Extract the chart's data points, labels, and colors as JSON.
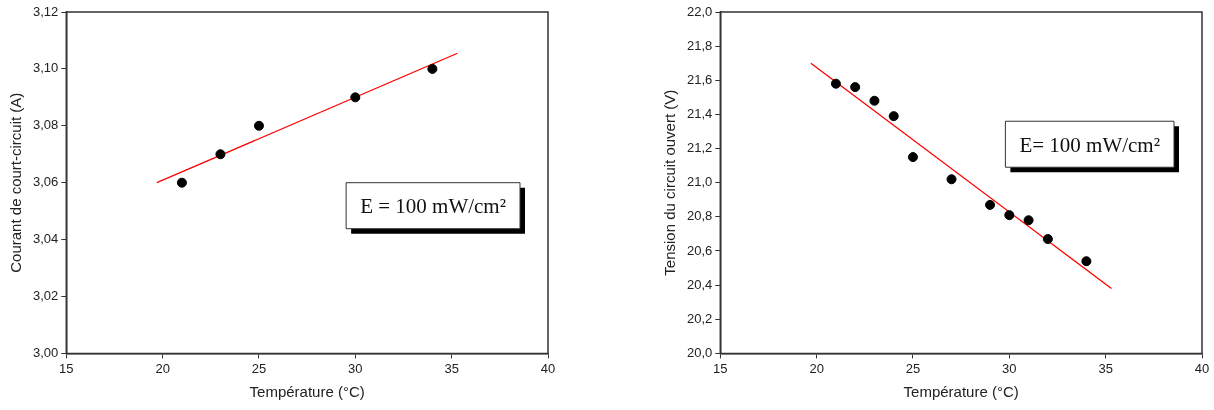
{
  "chart_data": [
    {
      "type": "scatter",
      "xlabel": "Température (°C)",
      "ylabel": "Courant de court-circuit (A)",
      "xlim": [
        15,
        40
      ],
      "xticks": [
        15,
        20,
        25,
        30,
        35,
        40
      ],
      "ylim": [
        3.0,
        3.12
      ],
      "yticks": [
        {
          "value": 3.0,
          "label": "3,00"
        },
        {
          "value": 3.02,
          "label": "3,02"
        },
        {
          "value": 3.04,
          "label": "3,04"
        },
        {
          "value": 3.06,
          "label": "3,06"
        },
        {
          "value": 3.08,
          "label": "3,08"
        },
        {
          "value": 3.1,
          "label": "3,10"
        },
        {
          "value": 3.12,
          "label": "3,12"
        }
      ],
      "grid": false,
      "legend": false,
      "annotations": [
        "E = 100 mW/cm²"
      ],
      "series": [
        {
          "color": "#000000",
          "marker": "circle",
          "x": [
            21,
            23,
            25,
            30,
            34
          ],
          "values": [
            3.06,
            3.07,
            3.08,
            3.09,
            3.1
          ]
        },
        {
          "type": "line",
          "color": "#ff0000",
          "marker": "none",
          "x": [
            19.7,
            35.3
          ],
          "values": [
            3.06,
            3.1055
          ]
        }
      ]
    },
    {
      "type": "scatter",
      "xlabel": "Température (°C)",
      "ylabel": "Tension du circuit ouvert (V)",
      "xlim": [
        15,
        40
      ],
      "xticks": [
        15,
        20,
        25,
        30,
        35,
        40
      ],
      "ylim": [
        20.0,
        22.0
      ],
      "yticks": [
        {
          "value": 20.0,
          "label": "20,0"
        },
        {
          "value": 20.2,
          "label": "20,2"
        },
        {
          "value": 20.4,
          "label": "20,4"
        },
        {
          "value": 20.6,
          "label": "20,6"
        },
        {
          "value": 20.8,
          "label": "20,8"
        },
        {
          "value": 21.0,
          "label": "21,0"
        },
        {
          "value": 21.2,
          "label": "21,2"
        },
        {
          "value": 21.4,
          "label": "21,4"
        },
        {
          "value": 21.6,
          "label": "21,6"
        },
        {
          "value": 21.8,
          "label": "21,8"
        },
        {
          "value": 22.0,
          "label": "22,0"
        }
      ],
      "grid": false,
      "legend": false,
      "annotations": [
        "E= 100 mW/cm²"
      ],
      "series": [
        {
          "color": "#000000",
          "marker": "circle",
          "x": [
            21,
            22,
            23,
            24,
            25,
            27,
            29,
            30,
            31,
            32,
            34
          ],
          "values": [
            21.58,
            21.56,
            21.48,
            21.39,
            21.15,
            21.02,
            20.87,
            20.81,
            20.78,
            20.67,
            20.54
          ]
        },
        {
          "type": "line",
          "color": "#ff0000",
          "marker": "none",
          "x": [
            19.7,
            35.3
          ],
          "values": [
            21.7,
            20.38
          ]
        }
      ]
    }
  ]
}
